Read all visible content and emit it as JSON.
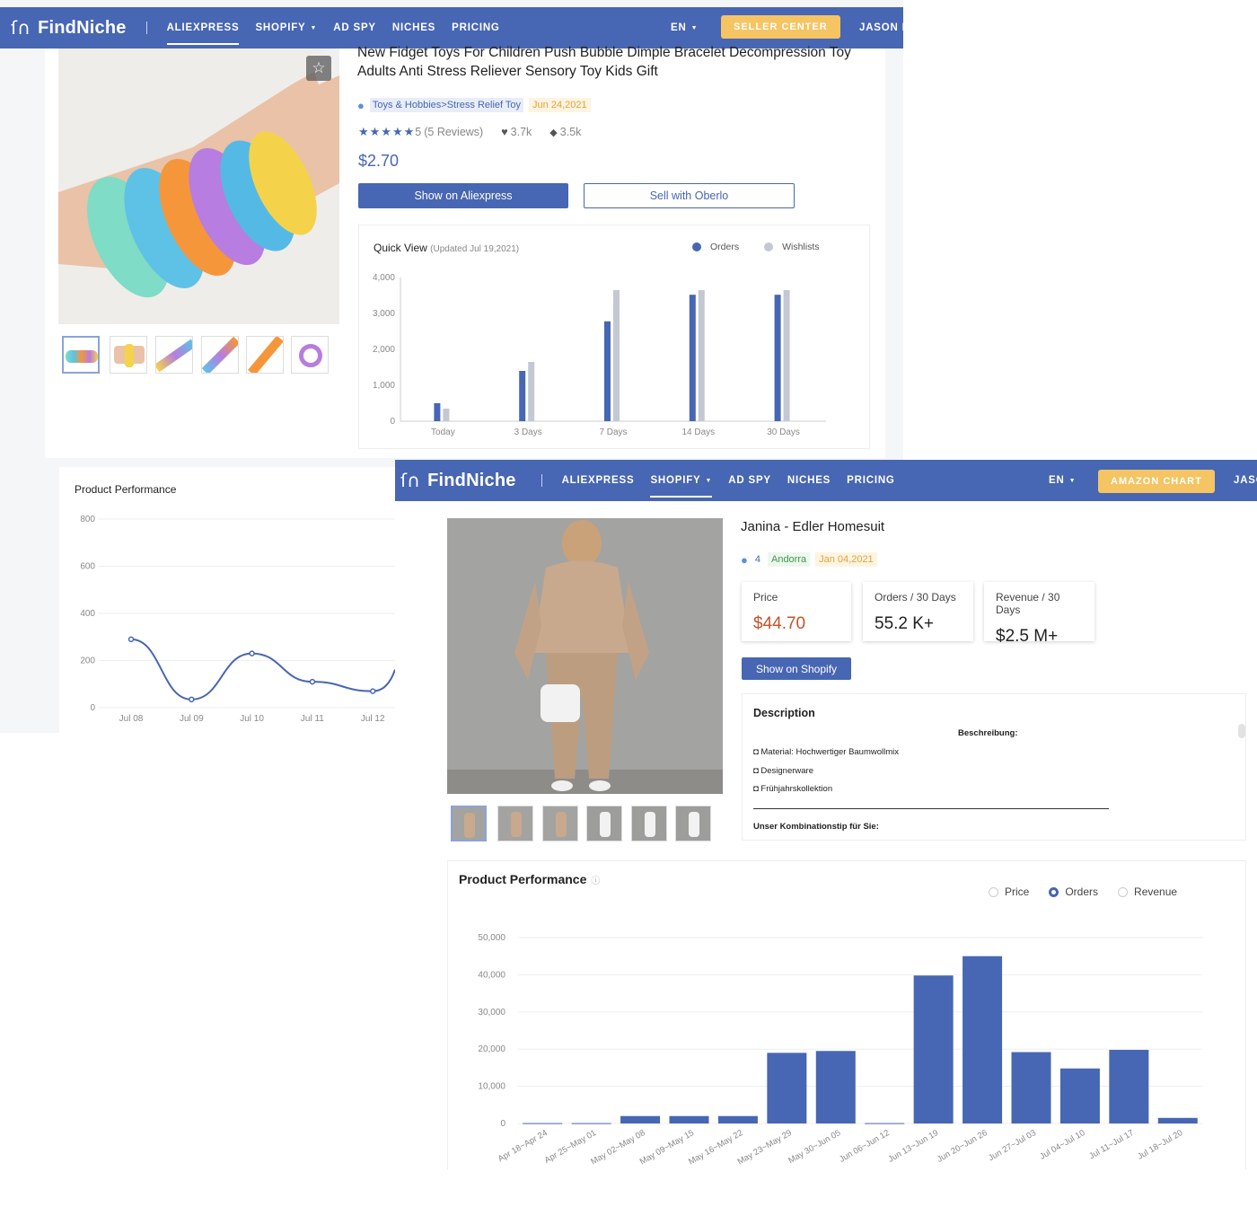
{
  "brand": {
    "name": "FindNiche",
    "mark": "ﬁ",
    "nav_color": "#4766b3",
    "accent_btn": "#f5c463"
  },
  "aliexpress_view": {
    "nav": {
      "items": [
        {
          "label": "ALIEXPRESS",
          "active": true,
          "dropdown": false
        },
        {
          "label": "SHOPIFY",
          "active": false,
          "dropdown": true
        },
        {
          "label": "AD SPY",
          "active": false,
          "dropdown": false
        },
        {
          "label": "NICHES",
          "active": false,
          "dropdown": false
        },
        {
          "label": "PRICING",
          "active": false,
          "dropdown": false
        }
      ],
      "lang": "EN",
      "cta": "SELLER CENTER",
      "user": "JASON K"
    },
    "product": {
      "title": "New Fidget Toys For Children Push Bubble Dimple Bracelet Decompression Toy Adults Anti Stress Reliever Sensory Toy Kids Gift",
      "category": "Toys & Hobbies>Stress Relief Toy",
      "date": "Jun 24,2021",
      "rating": "5",
      "reviews": "(5 Reviews)",
      "wishlists": "3.7k",
      "tags": "3.5k",
      "price": "$2.70",
      "btn_show": "Show on Aliexpress",
      "btn_sell": "Sell with Oberlo"
    },
    "quick_view": {
      "title": "Quick View",
      "updated": "(Updated Jul 19,2021)",
      "legend_orders": "Orders",
      "legend_wishlists": "Wishlists"
    },
    "performance": {
      "title": "Product Performance"
    }
  },
  "shopify_view": {
    "nav": {
      "items": [
        {
          "label": "ALIEXPRESS",
          "active": false,
          "dropdown": false
        },
        {
          "label": "SHOPIFY",
          "active": true,
          "dropdown": true
        },
        {
          "label": "AD SPY",
          "active": false,
          "dropdown": false
        },
        {
          "label": "NICHES",
          "active": false,
          "dropdown": false
        },
        {
          "label": "PRICING",
          "active": false,
          "dropdown": false
        }
      ],
      "lang": "EN",
      "cta": "AMAZON CHART",
      "user": "JASO"
    },
    "product": {
      "title": "Janina - Edler Homesuit",
      "count": "4",
      "country": "Andorra",
      "date": "Jan 04,2021",
      "price_label": "Price",
      "price_value": "$44.70",
      "orders_label": "Orders / 30 Days",
      "orders_value": "55.2 K+",
      "revenue_label": "Revenue / 30 Days",
      "revenue_value": "$2.5 M+",
      "btn_show": "Show on Shopify"
    },
    "description": {
      "heading": "Description",
      "sub": "Beschreibung:",
      "bullets": [
        "Material: Hochwertiger Baumwollmix",
        "Designerware",
        "Frühjahrskollektion"
      ],
      "tip": "Unser Kombinationstip für Sie:"
    },
    "performance": {
      "title": "Product Performance",
      "options": [
        {
          "label": "Price",
          "selected": false
        },
        {
          "label": "Orders",
          "selected": true
        },
        {
          "label": "Revenue",
          "selected": false
        }
      ]
    }
  },
  "chart_data": [
    {
      "type": "bar",
      "title": "Quick View",
      "categories": [
        "Today",
        "3 Days",
        "7 Days",
        "14 Days",
        "30 Days"
      ],
      "series": [
        {
          "name": "Orders",
          "values": [
            500,
            1400,
            2780,
            3520,
            3520
          ],
          "color": "#4766b3"
        },
        {
          "name": "Wishlists",
          "values": [
            350,
            1650,
            3650,
            3650,
            3650
          ],
          "color": "#c4c8d2"
        }
      ],
      "yticks": [
        "0",
        "1,000",
        "2,000",
        "3,000",
        "4,000"
      ],
      "ylim": [
        0,
        4000
      ]
    },
    {
      "type": "line",
      "title": "Product Performance",
      "categories": [
        "Jul 08",
        "Jul 09",
        "Jul 10",
        "Jul 11",
        "Jul 12"
      ],
      "series": [
        {
          "name": "",
          "values": [
            290,
            35,
            230,
            110,
            70
          ],
          "color": "#4766b3"
        }
      ],
      "yticks": [
        "0",
        "200",
        "400",
        "600",
        "800"
      ],
      "ylim": [
        0,
        800
      ]
    },
    {
      "type": "bar",
      "title": "Product Performance",
      "categories": [
        "Apr 18~Apr 24",
        "Apr 25~May 01",
        "May 02~May 08",
        "May 09~May 15",
        "May 16~May 22",
        "May 23~May 29",
        "May 30~Jun 05",
        "Jun 06~Jun 12",
        "Jun 13~Jun 19",
        "Jun 20~Jun 26",
        "Jun 27~Jul 03",
        "Jul 04~Jul 10",
        "Jul 11~Jul 17",
        "Jul 18~Jul 20"
      ],
      "series": [
        {
          "name": "Orders",
          "values": [
            100,
            100,
            2000,
            2000,
            2000,
            19000,
            19500,
            100,
            39800,
            45000,
            19200,
            14800,
            19800,
            1500
          ],
          "color": "#4766b3"
        }
      ],
      "yticks": [
        "0",
        "10,000",
        "20,000",
        "30,000",
        "40,000",
        "50,000"
      ],
      "ylim": [
        0,
        50000
      ]
    }
  ]
}
